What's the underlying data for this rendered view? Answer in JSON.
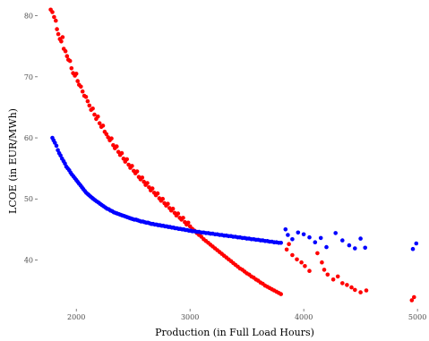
{
  "chart_data": {
    "type": "scatter",
    "title": "",
    "xlabel": "Production (in Full Load Hours)",
    "ylabel": "LCOE (in EUR/MWh)",
    "xlim": [
      1660,
      5070
    ],
    "ylim": [
      32,
      82
    ],
    "x_ticks": [
      2000,
      3000,
      4000,
      5000
    ],
    "y_ticks": [
      40,
      50,
      60,
      70,
      80
    ],
    "grid": false,
    "legend": "none",
    "series": [
      {
        "color": "#ff0000",
        "points": [
          [
            1775,
            81.0
          ],
          [
            1790,
            80.6
          ],
          [
            1805,
            79.8
          ],
          [
            1820,
            79.2
          ],
          [
            1830,
            77.8
          ],
          [
            1842,
            77.0
          ],
          [
            1855,
            76.2
          ],
          [
            1868,
            75.8
          ],
          [
            1880,
            76.5
          ],
          [
            1890,
            74.6
          ],
          [
            1905,
            74.2
          ],
          [
            1918,
            73.4
          ],
          [
            1930,
            72.8
          ],
          [
            1945,
            72.6
          ],
          [
            1958,
            71.4
          ],
          [
            1972,
            70.6
          ],
          [
            1988,
            70.2
          ],
          [
            2000,
            70.5
          ],
          [
            2012,
            69.3
          ],
          [
            2025,
            68.7
          ],
          [
            2040,
            68.4
          ],
          [
            2055,
            67.6
          ],
          [
            2070,
            66.9
          ],
          [
            2085,
            66.7
          ],
          [
            2100,
            66.0
          ],
          [
            2115,
            65.3
          ],
          [
            2130,
            64.6
          ],
          [
            2145,
            64.8
          ],
          [
            2160,
            63.8
          ],
          [
            2175,
            63.1
          ],
          [
            2190,
            63.5
          ],
          [
            2205,
            62.4
          ],
          [
            2220,
            61.8
          ],
          [
            2235,
            62.0
          ],
          [
            2250,
            61.0
          ],
          [
            2265,
            60.6
          ],
          [
            2280,
            60.1
          ],
          [
            2295,
            59.6
          ],
          [
            2310,
            59.9
          ],
          [
            2325,
            58.8
          ],
          [
            2340,
            58.3
          ],
          [
            2355,
            58.6
          ],
          [
            2370,
            57.7
          ],
          [
            2385,
            57.2
          ],
          [
            2400,
            57.5
          ],
          [
            2415,
            56.6
          ],
          [
            2430,
            56.1
          ],
          [
            2445,
            56.5
          ],
          [
            2460,
            55.6
          ],
          [
            2475,
            55.1
          ],
          [
            2490,
            55.4
          ],
          [
            2505,
            54.6
          ],
          [
            2520,
            54.2
          ],
          [
            2535,
            54.5
          ],
          [
            2550,
            53.6
          ],
          [
            2565,
            53.2
          ],
          [
            2580,
            53.5
          ],
          [
            2595,
            52.8
          ],
          [
            2610,
            52.3
          ],
          [
            2625,
            52.6
          ],
          [
            2640,
            51.9
          ],
          [
            2655,
            51.4
          ],
          [
            2670,
            51.7
          ],
          [
            2685,
            51.0
          ],
          [
            2700,
            50.6
          ],
          [
            2715,
            50.9
          ],
          [
            2730,
            50.1
          ],
          [
            2745,
            49.7
          ],
          [
            2760,
            50.0
          ],
          [
            2775,
            49.3
          ],
          [
            2790,
            48.9
          ],
          [
            2805,
            49.2
          ],
          [
            2820,
            48.5
          ],
          [
            2835,
            48.1
          ],
          [
            2850,
            48.4
          ],
          [
            2865,
            47.7
          ],
          [
            2880,
            47.3
          ],
          [
            2895,
            47.6
          ],
          [
            2910,
            46.9
          ],
          [
            2925,
            46.6
          ],
          [
            2940,
            46.9
          ],
          [
            2955,
            46.2
          ],
          [
            2970,
            45.8
          ],
          [
            2985,
            46.1
          ],
          [
            3000,
            45.5
          ],
          [
            3020,
            45.1
          ],
          [
            3040,
            44.8
          ],
          [
            3060,
            44.4
          ],
          [
            3080,
            44.1
          ],
          [
            3100,
            43.8
          ],
          [
            3120,
            43.4
          ],
          [
            3140,
            43.1
          ],
          [
            3160,
            42.8
          ],
          [
            3180,
            42.5
          ],
          [
            3200,
            42.2
          ],
          [
            3220,
            41.9
          ],
          [
            3240,
            41.6
          ],
          [
            3260,
            41.3
          ],
          [
            3280,
            41.0
          ],
          [
            3300,
            40.7
          ],
          [
            3320,
            40.4
          ],
          [
            3340,
            40.1
          ],
          [
            3360,
            39.8
          ],
          [
            3380,
            39.5
          ],
          [
            3400,
            39.2
          ],
          [
            3420,
            38.9
          ],
          [
            3440,
            38.6
          ],
          [
            3460,
            38.4
          ],
          [
            3480,
            38.1
          ],
          [
            3500,
            37.8
          ],
          [
            3520,
            37.6
          ],
          [
            3540,
            37.3
          ],
          [
            3560,
            37.1
          ],
          [
            3580,
            36.8
          ],
          [
            3600,
            36.6
          ],
          [
            3620,
            36.3
          ],
          [
            3640,
            36.1
          ],
          [
            3660,
            35.8
          ],
          [
            3680,
            35.6
          ],
          [
            3700,
            35.4
          ],
          [
            3720,
            35.2
          ],
          [
            3740,
            35.0
          ],
          [
            3760,
            34.8
          ],
          [
            3780,
            34.6
          ],
          [
            3800,
            34.4
          ],
          [
            3850,
            41.7
          ],
          [
            3870,
            42.6
          ],
          [
            3900,
            40.8
          ],
          [
            3940,
            40.1
          ],
          [
            3980,
            39.6
          ],
          [
            4010,
            39.0
          ],
          [
            4050,
            38.2
          ],
          [
            4120,
            41.1
          ],
          [
            4160,
            39.6
          ],
          [
            4180,
            38.4
          ],
          [
            4210,
            37.6
          ],
          [
            4260,
            36.8
          ],
          [
            4300,
            37.3
          ],
          [
            4340,
            36.2
          ],
          [
            4380,
            35.9
          ],
          [
            4420,
            35.5
          ],
          [
            4450,
            35.1
          ],
          [
            4500,
            34.7
          ],
          [
            4550,
            35.0
          ],
          [
            4950,
            33.4
          ],
          [
            4970,
            33.9
          ]
        ]
      },
      {
        "color": "#0000ff",
        "points": [
          [
            1790,
            60.0
          ],
          [
            1800,
            59.6
          ],
          [
            1812,
            59.2
          ],
          [
            1825,
            58.7
          ],
          [
            1838,
            58.0
          ],
          [
            1850,
            57.5
          ],
          [
            1862,
            57.1
          ],
          [
            1875,
            56.6
          ],
          [
            1888,
            56.2
          ],
          [
            1900,
            55.8
          ],
          [
            1912,
            55.3
          ],
          [
            1925,
            55.0
          ],
          [
            1938,
            54.7
          ],
          [
            1950,
            54.3
          ],
          [
            1962,
            54.0
          ],
          [
            1975,
            53.7
          ],
          [
            1988,
            53.4
          ],
          [
            2000,
            53.1
          ],
          [
            2012,
            52.8
          ],
          [
            2025,
            52.5
          ],
          [
            2038,
            52.2
          ],
          [
            2050,
            51.9
          ],
          [
            2062,
            51.6
          ],
          [
            2075,
            51.3
          ],
          [
            2088,
            51.0
          ],
          [
            2100,
            50.8
          ],
          [
            2112,
            50.6
          ],
          [
            2125,
            50.4
          ],
          [
            2138,
            50.2
          ],
          [
            2150,
            50.0
          ],
          [
            2165,
            49.8
          ],
          [
            2180,
            49.6
          ],
          [
            2195,
            49.4
          ],
          [
            2210,
            49.2
          ],
          [
            2225,
            49.0
          ],
          [
            2240,
            48.8
          ],
          [
            2255,
            48.6
          ],
          [
            2270,
            48.4
          ],
          [
            2285,
            48.3
          ],
          [
            2300,
            48.1
          ],
          [
            2315,
            48.0
          ],
          [
            2330,
            47.8
          ],
          [
            2345,
            47.7
          ],
          [
            2360,
            47.6
          ],
          [
            2375,
            47.5
          ],
          [
            2390,
            47.4
          ],
          [
            2405,
            47.3
          ],
          [
            2420,
            47.2
          ],
          [
            2435,
            47.1
          ],
          [
            2450,
            47.0
          ],
          [
            2465,
            46.9
          ],
          [
            2480,
            46.8
          ],
          [
            2495,
            46.7
          ],
          [
            2510,
            46.6
          ],
          [
            2525,
            46.6
          ],
          [
            2540,
            46.5
          ],
          [
            2555,
            46.4
          ],
          [
            2570,
            46.3
          ],
          [
            2585,
            46.3
          ],
          [
            2600,
            46.2
          ],
          [
            2615,
            46.1
          ],
          [
            2630,
            46.1
          ],
          [
            2645,
            46.0
          ],
          [
            2660,
            45.9
          ],
          [
            2675,
            45.9
          ],
          [
            2690,
            45.8
          ],
          [
            2705,
            45.8
          ],
          [
            2720,
            45.7
          ],
          [
            2735,
            45.7
          ],
          [
            2750,
            45.6
          ],
          [
            2765,
            45.6
          ],
          [
            2780,
            45.5
          ],
          [
            2795,
            45.5
          ],
          [
            2810,
            45.4
          ],
          [
            2825,
            45.4
          ],
          [
            2840,
            45.3
          ],
          [
            2855,
            45.3
          ],
          [
            2870,
            45.2
          ],
          [
            2885,
            45.2
          ],
          [
            2900,
            45.1
          ],
          [
            2915,
            45.1
          ],
          [
            2930,
            45.0
          ],
          [
            2945,
            45.0
          ],
          [
            2960,
            44.9
          ],
          [
            2975,
            44.9
          ],
          [
            2990,
            44.8
          ],
          [
            3005,
            44.8
          ],
          [
            3020,
            44.7
          ],
          [
            3040,
            44.7
          ],
          [
            3060,
            44.6
          ],
          [
            3080,
            44.6
          ],
          [
            3100,
            44.5
          ],
          [
            3120,
            44.5
          ],
          [
            3140,
            44.4
          ],
          [
            3160,
            44.4
          ],
          [
            3180,
            44.3
          ],
          [
            3200,
            44.3
          ],
          [
            3220,
            44.2
          ],
          [
            3240,
            44.2
          ],
          [
            3260,
            44.1
          ],
          [
            3280,
            44.1
          ],
          [
            3300,
            44.0
          ],
          [
            3320,
            44.0
          ],
          [
            3340,
            43.9
          ],
          [
            3360,
            43.9
          ],
          [
            3380,
            43.8
          ],
          [
            3400,
            43.8
          ],
          [
            3420,
            43.7
          ],
          [
            3440,
            43.7
          ],
          [
            3460,
            43.6
          ],
          [
            3480,
            43.6
          ],
          [
            3500,
            43.5
          ],
          [
            3520,
            43.5
          ],
          [
            3540,
            43.4
          ],
          [
            3560,
            43.4
          ],
          [
            3580,
            43.3
          ],
          [
            3600,
            43.3
          ],
          [
            3620,
            43.2
          ],
          [
            3640,
            43.2
          ],
          [
            3660,
            43.1
          ],
          [
            3680,
            43.1
          ],
          [
            3700,
            43.0
          ],
          [
            3720,
            43.0
          ],
          [
            3740,
            42.9
          ],
          [
            3760,
            42.9
          ],
          [
            3780,
            42.8
          ],
          [
            3800,
            42.8
          ],
          [
            3840,
            45.0
          ],
          [
            3860,
            44.1
          ],
          [
            3900,
            43.4
          ],
          [
            3950,
            44.5
          ],
          [
            4000,
            44.2
          ],
          [
            4050,
            43.7
          ],
          [
            4100,
            42.9
          ],
          [
            4150,
            43.6
          ],
          [
            4200,
            42.1
          ],
          [
            4280,
            44.4
          ],
          [
            4340,
            43.2
          ],
          [
            4400,
            42.4
          ],
          [
            4450,
            41.9
          ],
          [
            4500,
            43.5
          ],
          [
            4540,
            42.0
          ],
          [
            4960,
            41.8
          ],
          [
            4990,
            42.7
          ]
        ]
      }
    ]
  }
}
